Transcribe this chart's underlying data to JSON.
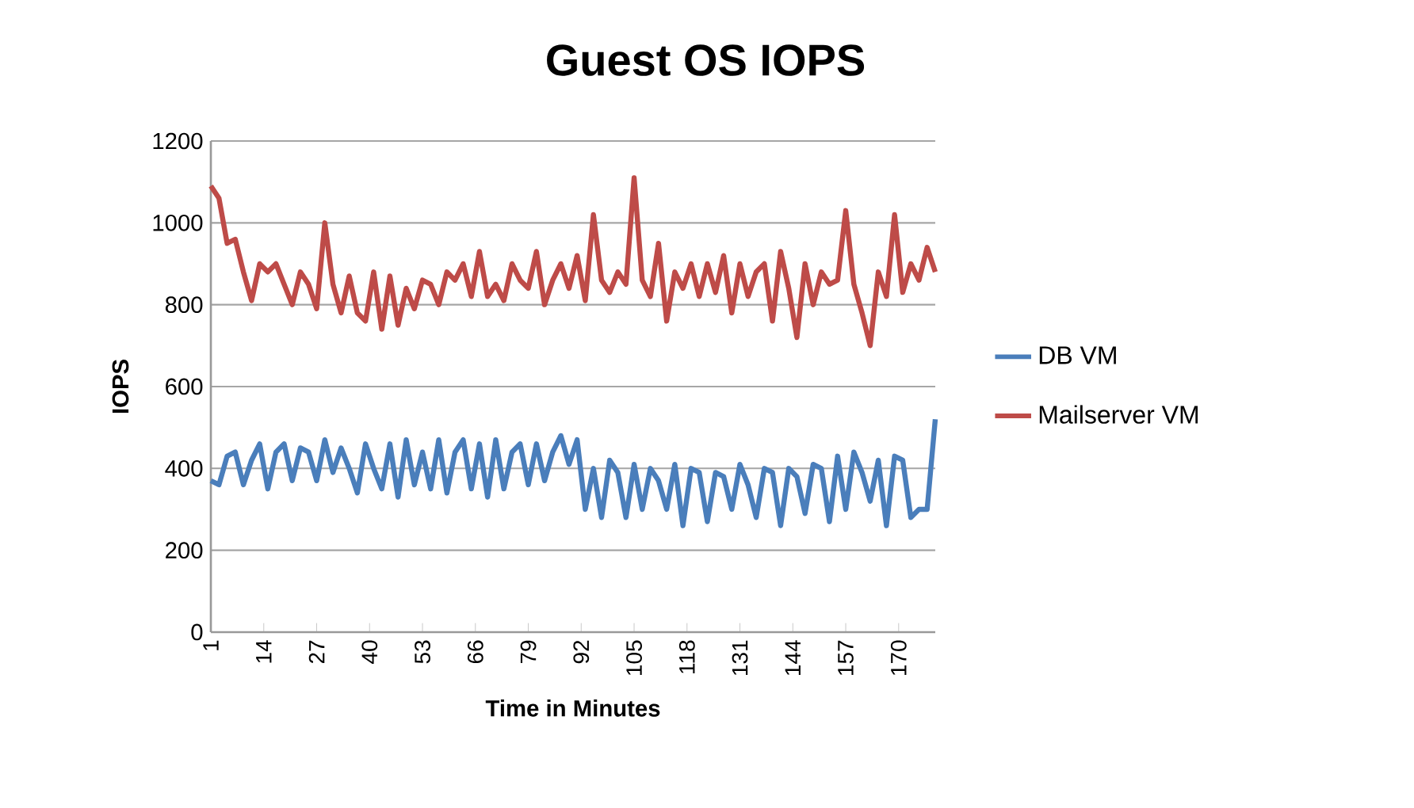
{
  "chart_data": {
    "type": "line",
    "title": "Guest OS IOPS",
    "xlabel": "Time in Minutes",
    "ylabel": "IOPS",
    "xlim": [
      1,
      179
    ],
    "xticks": [
      1,
      14,
      27,
      40,
      53,
      66,
      79,
      92,
      105,
      118,
      131,
      144,
      157,
      170
    ],
    "ylim": [
      0,
      1200
    ],
    "yticks": [
      0,
      200,
      400,
      600,
      800,
      1000,
      1200
    ],
    "grid": "y",
    "legend": "right",
    "marker": "none",
    "line_style": "solid",
    "x": [
      1,
      3,
      5,
      7,
      9,
      11,
      13,
      15,
      17,
      19,
      21,
      23,
      25,
      27,
      29,
      31,
      33,
      35,
      37,
      39,
      41,
      43,
      45,
      47,
      49,
      51,
      53,
      55,
      57,
      59,
      61,
      63,
      65,
      67,
      69,
      71,
      73,
      75,
      77,
      79,
      81,
      83,
      85,
      87,
      89,
      91,
      93,
      95,
      97,
      99,
      101,
      103,
      105,
      107,
      109,
      111,
      113,
      115,
      117,
      119,
      121,
      123,
      125,
      127,
      129,
      131,
      133,
      135,
      137,
      139,
      141,
      143,
      145,
      147,
      149,
      151,
      153,
      155,
      157,
      159,
      161,
      163,
      165,
      167,
      169,
      171,
      173,
      175,
      177,
      179
    ],
    "series": [
      {
        "name": "DB VM",
        "color": "#4a7ebb",
        "values": [
          370,
          360,
          430,
          440,
          360,
          420,
          460,
          350,
          440,
          460,
          370,
          450,
          440,
          370,
          470,
          390,
          450,
          400,
          340,
          460,
          400,
          350,
          460,
          330,
          470,
          360,
          440,
          350,
          470,
          340,
          440,
          470,
          350,
          460,
          330,
          470,
          350,
          440,
          460,
          360,
          460,
          370,
          440,
          480,
          410,
          470,
          300,
          400,
          280,
          420,
          390,
          280,
          410,
          300,
          400,
          370,
          300,
          410,
          260,
          400,
          390,
          270,
          390,
          380,
          300,
          410,
          360,
          280,
          400,
          390,
          260,
          400,
          380,
          290,
          410,
          400,
          270,
          430,
          300,
          440,
          390,
          320,
          420,
          260,
          430,
          420,
          280,
          300,
          300,
          520
        ]
      },
      {
        "name": "Mailserver VM",
        "color": "#be4b48",
        "values": [
          1090,
          1060,
          950,
          960,
          880,
          810,
          900,
          880,
          900,
          850,
          800,
          880,
          850,
          790,
          1000,
          850,
          780,
          870,
          780,
          760,
          880,
          740,
          870,
          750,
          840,
          790,
          860,
          850,
          800,
          880,
          860,
          900,
          820,
          930,
          820,
          850,
          810,
          900,
          860,
          840,
          930,
          800,
          860,
          900,
          840,
          920,
          810,
          1020,
          860,
          830,
          880,
          850,
          1110,
          860,
          820,
          950,
          760,
          880,
          840,
          900,
          820,
          900,
          830,
          920,
          780,
          900,
          820,
          880,
          900,
          760,
          930,
          840,
          720,
          900,
          800,
          880,
          850,
          860,
          1030,
          850,
          780,
          700,
          880,
          820,
          1020,
          830,
          900,
          860,
          940,
          880
        ]
      }
    ]
  }
}
